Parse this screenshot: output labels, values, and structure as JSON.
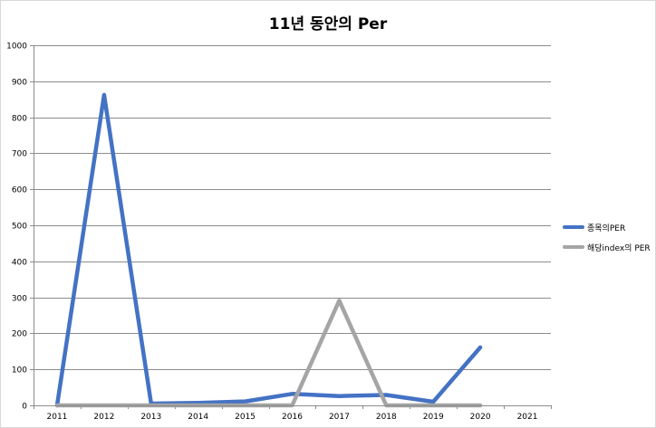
{
  "chart_data": {
    "type": "line",
    "title": "11년 동안의 Per",
    "xlabel": "",
    "ylabel": "",
    "categories": [
      "2011",
      "2012",
      "2013",
      "2014",
      "2015",
      "2016",
      "2017",
      "2018",
      "2019",
      "2020",
      "2021"
    ],
    "ylim": [
      0,
      1000
    ],
    "yticks": [
      "0",
      "100",
      "200",
      "300",
      "400",
      "500",
      "600",
      "700",
      "800",
      "900",
      "1000"
    ],
    "grid": true,
    "legend_position": "right",
    "series": [
      {
        "name": "종목의PER",
        "color": "#4472c4",
        "values": [
          0,
          862,
          5,
          7,
          11,
          32,
          26,
          29,
          10,
          161,
          null
        ]
      },
      {
        "name": "해당index의 PER",
        "color": "#a5a5a5",
        "values": [
          0,
          0,
          0,
          0,
          0,
          0,
          291,
          0,
          0,
          0,
          null
        ]
      }
    ]
  }
}
